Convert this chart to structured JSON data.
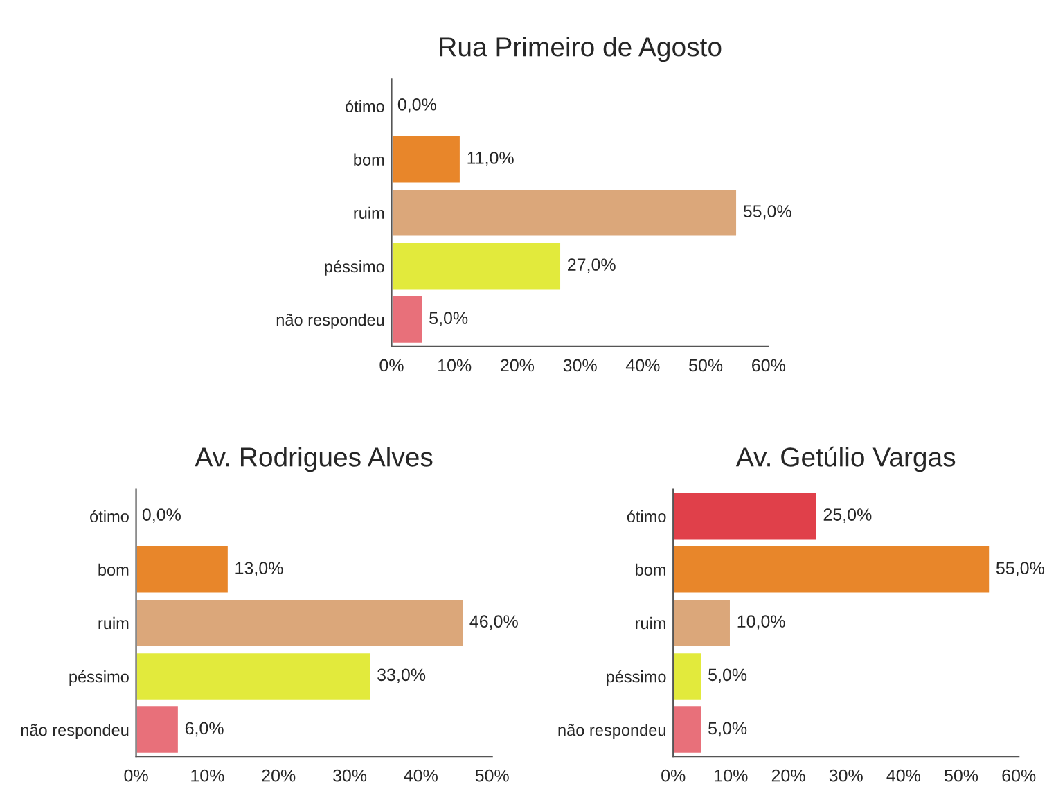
{
  "chart_data": [
    {
      "type": "bar",
      "orientation": "horizontal",
      "title": "Rua Primeiro de Agosto",
      "categories": [
        "ótimo",
        "bom",
        "ruim",
        "péssimo",
        "não respondeu"
      ],
      "values": [
        0,
        11,
        55,
        27,
        5
      ],
      "value_labels": [
        "0,0%",
        "11,0%",
        "55,0%",
        "27,0%",
        "5,0%"
      ],
      "colors": [
        null,
        "#e8862a",
        "#dba77a",
        "#e2ea3c",
        "#e8707a"
      ],
      "xlim": [
        0,
        60
      ],
      "xticks": [
        {
          "value": 0,
          "label": "0%"
        },
        {
          "value": 10,
          "label": "10%"
        },
        {
          "value": 20,
          "label": "20%"
        },
        {
          "value": 30,
          "label": "30%"
        },
        {
          "value": 40,
          "label": "40%"
        },
        {
          "value": 50,
          "label": "50%"
        },
        {
          "value": 60,
          "label": "60%"
        }
      ]
    },
    {
      "type": "bar",
      "orientation": "horizontal",
      "title": "Av. Rodrigues Alves",
      "categories": [
        "ótimo",
        "bom",
        "ruim",
        "péssimo",
        "não respondeu"
      ],
      "values": [
        0,
        13,
        46,
        33,
        6
      ],
      "value_labels": [
        "0,0%",
        "13,0%",
        "46,0%",
        "33,0%",
        "6,0%"
      ],
      "colors": [
        null,
        "#e8862a",
        "#dba77a",
        "#e2ea3c",
        "#e8707a"
      ],
      "xlim": [
        0,
        50
      ],
      "xticks": [
        {
          "value": 0,
          "label": "0%"
        },
        {
          "value": 10,
          "label": "10%"
        },
        {
          "value": 20,
          "label": "20%"
        },
        {
          "value": 30,
          "label": "30%"
        },
        {
          "value": 40,
          "label": "40%"
        },
        {
          "value": 50,
          "label": "50%"
        }
      ]
    },
    {
      "type": "bar",
      "orientation": "horizontal",
      "title": "Av. Getúlio Vargas",
      "categories": [
        "ótimo",
        "bom",
        "ruim",
        "péssimo",
        "não respondeu"
      ],
      "values": [
        25,
        55,
        10,
        5,
        5
      ],
      "value_labels": [
        "25,0%",
        "55,0%",
        "10,0%",
        "5,0%",
        "5,0%"
      ],
      "colors": [
        "#e0404a",
        "#e8862a",
        "#dba77a",
        "#e2ea3c",
        "#e8707a"
      ],
      "xlim": [
        0,
        60
      ],
      "xticks": [
        {
          "value": 0,
          "label": "0%"
        },
        {
          "value": 10,
          "label": "10%"
        },
        {
          "value": 20,
          "label": "20%"
        },
        {
          "value": 30,
          "label": "30%"
        },
        {
          "value": 40,
          "label": "40%"
        },
        {
          "value": 50,
          "label": "50%"
        },
        {
          "value": 60,
          "label": "60%"
        }
      ]
    }
  ]
}
